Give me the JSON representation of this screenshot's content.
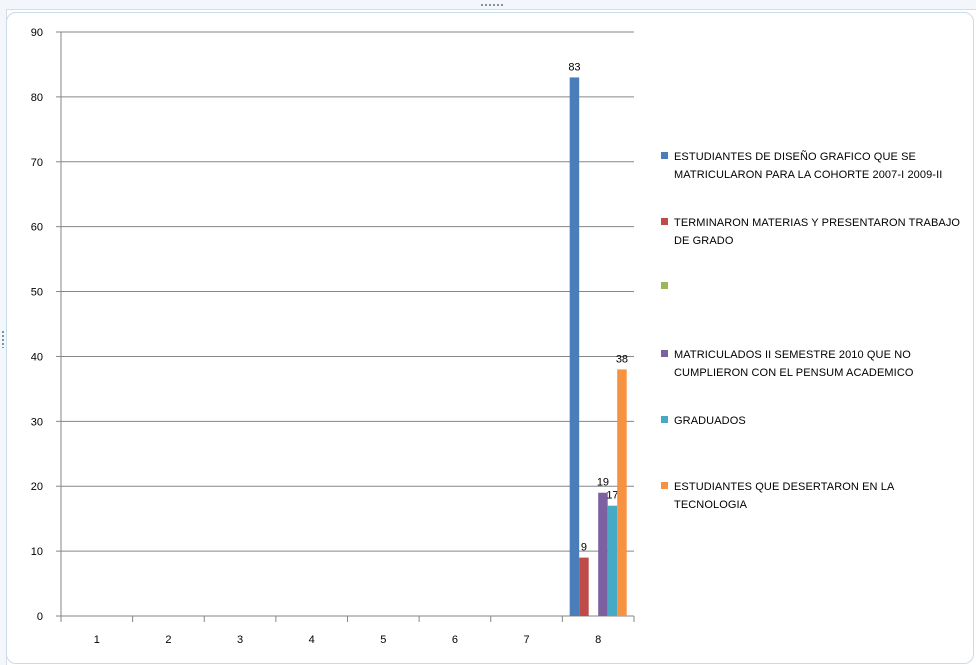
{
  "chart_data": {
    "type": "bar",
    "categories": [
      "1",
      "2",
      "3",
      "4",
      "5",
      "6",
      "7",
      "8"
    ],
    "ylim": [
      0,
      90
    ],
    "yticks": [
      0,
      10,
      20,
      30,
      40,
      50,
      60,
      70,
      80,
      90
    ],
    "grid": true,
    "legend_position": "right",
    "series": [
      {
        "name": "ESTUDIANTES  DE DISEÑO GRAFICO QUE SE MATRICULARON PARA LA COHORTE 2007-I 2009-II",
        "color": "#4a7ebb",
        "values": [
          null,
          null,
          null,
          null,
          null,
          null,
          null,
          83
        ]
      },
      {
        "name": "TERMINARON  MATERIAS  Y PRESENTARON TRABAJO DE GRADO",
        "color": "#be4b48",
        "values": [
          null,
          null,
          null,
          null,
          null,
          null,
          null,
          9
        ]
      },
      {
        "name": "",
        "color": "#98b954",
        "values": [
          null,
          null,
          null,
          null,
          null,
          null,
          null,
          null
        ]
      },
      {
        "name": "MATRICULADOS II SEMESTRE  2010 QUE NO CUMPLIERON CON EL PENSUM  ACADEMICO",
        "color": "#7d60a0",
        "values": [
          null,
          null,
          null,
          null,
          null,
          null,
          null,
          19
        ]
      },
      {
        "name": "GRADUADOS",
        "color": "#46aac5",
        "values": [
          null,
          null,
          null,
          null,
          null,
          null,
          null,
          17
        ]
      },
      {
        "name": "ESTUDIANTES  QUE DESERTARON  EN LA TECNOLOGIA",
        "color": "#f69240",
        "values": [
          null,
          null,
          null,
          null,
          null,
          null,
          null,
          38
        ]
      }
    ]
  }
}
